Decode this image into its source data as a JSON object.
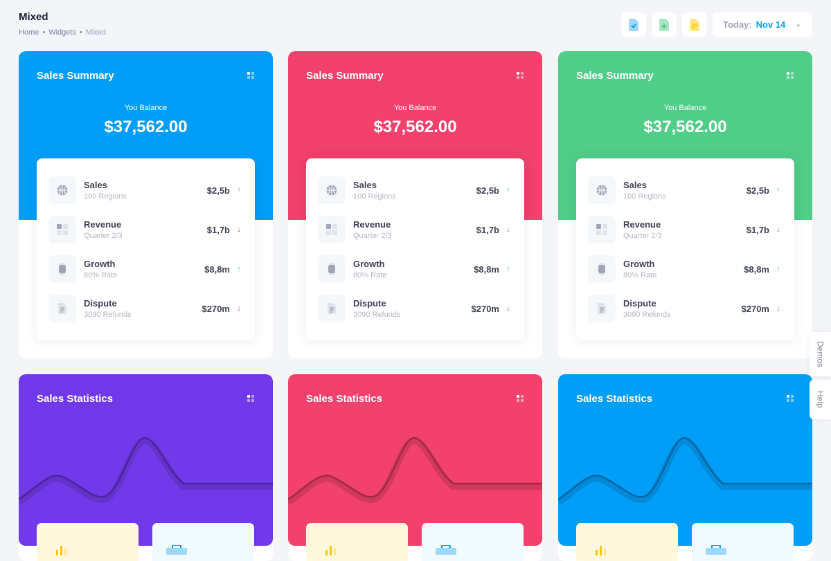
{
  "toolbar": {
    "title": "Mixed",
    "breadcrumb": [
      "Home",
      "Widgets",
      "Mixed"
    ],
    "buttons": [
      {
        "icon": "file-check-icon",
        "color": "#009ef7"
      },
      {
        "icon": "file-plus-icon",
        "color": "#50cd89"
      },
      {
        "icon": "file-text-icon",
        "color": "#ffc700"
      }
    ],
    "date": {
      "label": "Today:",
      "value": "Nov 14"
    }
  },
  "summary_cards": [
    {
      "title": "Sales Summary",
      "color": "#009ef7",
      "balance_label": "You Balance",
      "balance": "$37,562.00"
    },
    {
      "title": "Sales Summary",
      "color": "#f1416c",
      "balance_label": "You Balance",
      "balance": "$37,562.00"
    },
    {
      "title": "Sales Summary",
      "color": "#50cd89",
      "balance_label": "You Balance",
      "balance": "$37,562.00"
    }
  ],
  "summary_rows": [
    {
      "icon": "globe-icon",
      "name": "Sales",
      "sub": "100 Regions",
      "value": "$2,5b",
      "trend": "up"
    },
    {
      "icon": "grid-icon",
      "name": "Revenue",
      "sub": "Quarter 2/3",
      "value": "$1,7b",
      "trend": "down"
    },
    {
      "icon": "watch-icon",
      "name": "Growth",
      "sub": "80% Rate",
      "value": "$8,8m",
      "trend": "up"
    },
    {
      "icon": "document-icon",
      "name": "Dispute",
      "sub": "3090 Refunds",
      "value": "$270m",
      "trend": "down"
    }
  ],
  "statistics_cards": [
    {
      "title": "Sales Statistics",
      "color": "#7239ea"
    },
    {
      "title": "Sales Statistics",
      "color": "#f1416c"
    },
    {
      "title": "Sales Statistics",
      "color": "#009ef7"
    }
  ],
  "side_tabs": [
    "Demos",
    "Help"
  ]
}
